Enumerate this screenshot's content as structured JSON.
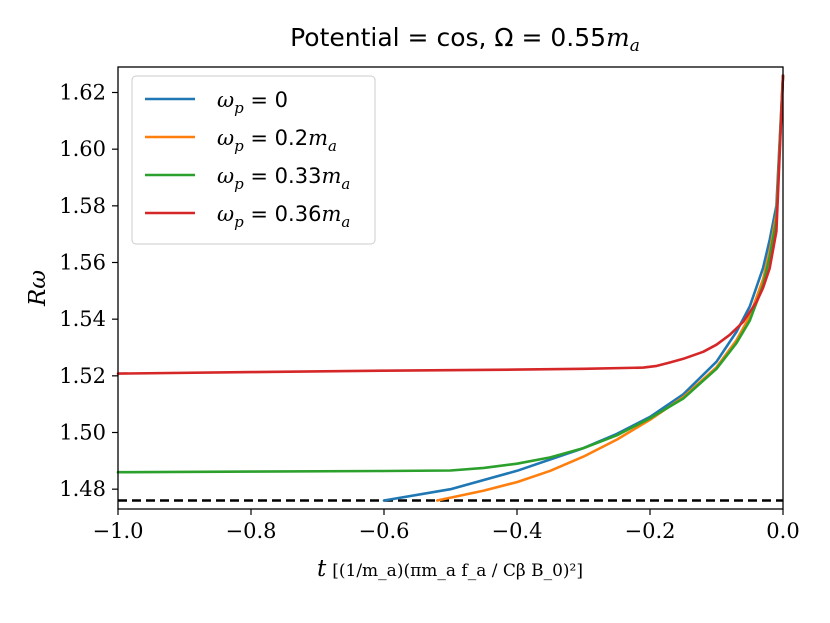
{
  "chart_data": {
    "type": "line",
    "title": "Potential = cos, Ω = 0.55m_a",
    "title_parts": {
      "prefix": "Potential = cos, Ω = 0.55",
      "var": "m",
      "sub": "a"
    },
    "xlabel": "t [1/m_a (π m_a f_a / (C β B_0))^2]",
    "xlabel_parts": {
      "var": "t",
      "rest": "[(1/m_a)(πm_a f_a / Cβ B_0)²]"
    },
    "ylabel": "Rω",
    "xlim": [
      -1.0,
      0.0
    ],
    "ylim": [
      1.473,
      1.629
    ],
    "xticks": [
      -1.0,
      -0.8,
      -0.6,
      -0.4,
      -0.2,
      0.0
    ],
    "xtick_labels": [
      "−1.0",
      "−0.8",
      "−0.6",
      "−0.4",
      "−0.2",
      "0.0"
    ],
    "yticks": [
      1.48,
      1.5,
      1.52,
      1.54,
      1.56,
      1.58,
      1.6,
      1.62
    ],
    "ytick_labels": [
      "1.48",
      "1.50",
      "1.52",
      "1.54",
      "1.56",
      "1.58",
      "1.60",
      "1.62"
    ],
    "grid": false,
    "legend_position": "top-left",
    "reference_line": {
      "y": 1.476,
      "style": "dashed",
      "color": "#000000"
    },
    "series": [
      {
        "name": "ω_p = 0",
        "label_lhs": "ω",
        "label_sub": "p",
        "label_rhs": " = 0",
        "color": "#1f77b4",
        "x": [
          -0.6,
          -0.5,
          -0.4,
          -0.3,
          -0.25,
          -0.2,
          -0.15,
          -0.1,
          -0.07,
          -0.05,
          -0.03,
          -0.02,
          -0.01,
          0.0
        ],
        "y": [
          1.476,
          1.48,
          1.4865,
          1.4945,
          1.4995,
          1.5055,
          1.5135,
          1.525,
          1.5355,
          1.5445,
          1.558,
          1.568,
          1.58,
          1.626
        ]
      },
      {
        "name": "ω_p = 0.2m_a",
        "label_lhs": "ω",
        "label_sub": "p",
        "label_rhs": " = 0.2",
        "label_tail": "m",
        "label_tail_sub": "a",
        "color": "#ff7f0e",
        "x": [
          -0.52,
          -0.45,
          -0.4,
          -0.35,
          -0.3,
          -0.25,
          -0.2,
          -0.15,
          -0.1,
          -0.07,
          -0.05,
          -0.03,
          -0.02,
          -0.01,
          0.0
        ],
        "y": [
          1.476,
          1.4795,
          1.4825,
          1.4865,
          1.4915,
          1.4975,
          1.5045,
          1.5125,
          1.523,
          1.5325,
          1.541,
          1.554,
          1.564,
          1.577,
          1.626
        ]
      },
      {
        "name": "ω_p = 0.33m_a",
        "label_lhs": "ω",
        "label_sub": "p",
        "label_rhs": " = 0.33",
        "label_tail": "m",
        "label_tail_sub": "a",
        "color": "#2ca02c",
        "x": [
          -1.0,
          -0.8,
          -0.6,
          -0.5,
          -0.45,
          -0.4,
          -0.35,
          -0.3,
          -0.25,
          -0.2,
          -0.15,
          -0.1,
          -0.07,
          -0.05,
          -0.03,
          -0.02,
          -0.01,
          0.0
        ],
        "y": [
          1.486,
          1.4862,
          1.4864,
          1.4866,
          1.4875,
          1.489,
          1.4912,
          1.4945,
          1.499,
          1.505,
          1.512,
          1.5225,
          1.5315,
          1.5395,
          1.552,
          1.562,
          1.575,
          1.626
        ]
      },
      {
        "name": "ω_p = 0.36m_a",
        "label_lhs": "ω",
        "label_sub": "p",
        "label_rhs": " = 0.36",
        "label_tail": "m",
        "label_tail_sub": "a",
        "color": "#d62728",
        "x": [
          -1.0,
          -0.8,
          -0.6,
          -0.4,
          -0.3,
          -0.21,
          -0.19,
          -0.17,
          -0.15,
          -0.12,
          -0.1,
          -0.08,
          -0.06,
          -0.04,
          -0.03,
          -0.02,
          -0.01,
          0.0
        ],
        "y": [
          1.5208,
          1.5213,
          1.5218,
          1.5222,
          1.5225,
          1.5229,
          1.5235,
          1.5247,
          1.526,
          1.5285,
          1.531,
          1.5345,
          1.539,
          1.546,
          1.551,
          1.558,
          1.571,
          1.626
        ]
      }
    ]
  }
}
